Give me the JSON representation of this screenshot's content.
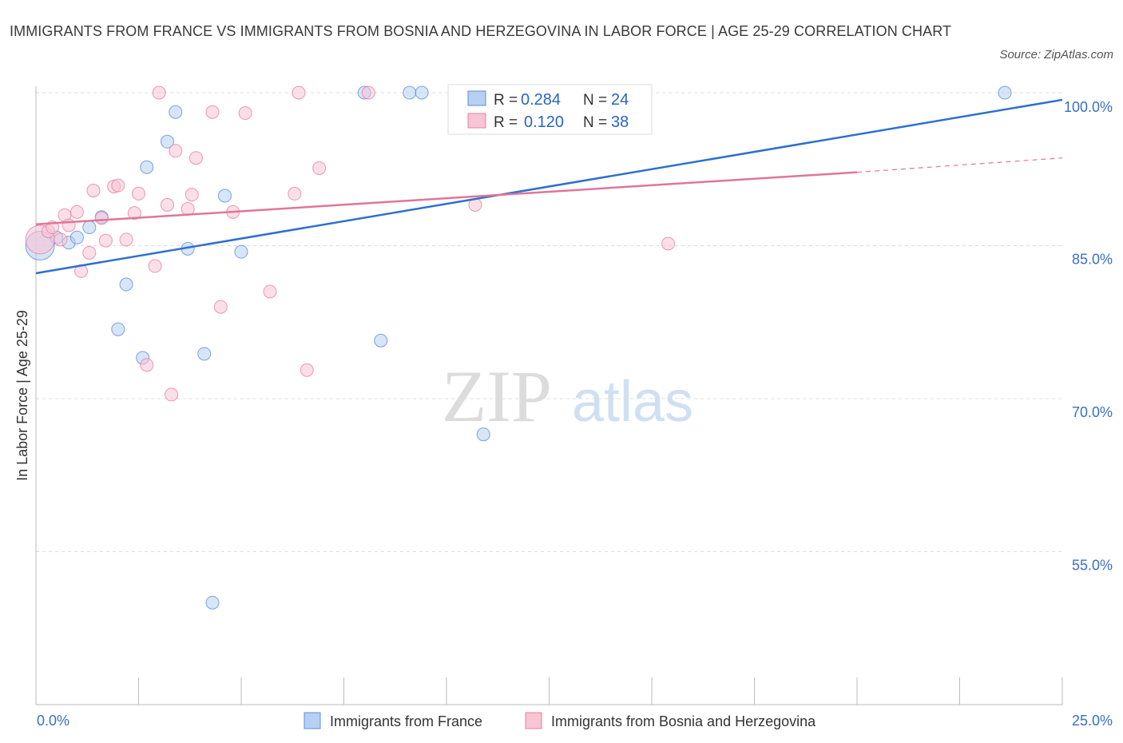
{
  "title": "IMMIGRANTS FROM FRANCE VS IMMIGRANTS FROM BOSNIA AND HERZEGOVINA IN LABOR FORCE | AGE 25-29 CORRELATION CHART",
  "source": "Source: ZipAtlas.com",
  "watermark": {
    "zip": "ZIP",
    "atlas": "atlas"
  },
  "colors": {
    "blue": "#5b8fd8",
    "blue_fill": "#b7d0f2",
    "blue_line": "#2f6fcf",
    "pink": "#e87fa0",
    "pink_fill": "#f7c5d5",
    "pink_line": "#e0759a",
    "axis_label": "#3a6fc4",
    "grid": "#dddddd"
  },
  "legend": {
    "r_label": "R =",
    "n_label": "N =",
    "blue": {
      "r": "0.284",
      "n": "24"
    },
    "pink": {
      "r": "0.120",
      "n": "38"
    }
  },
  "chart_data": {
    "type": "scatter",
    "title": "IMMIGRANTS FROM FRANCE VS IMMIGRANTS FROM BOSNIA AND HERZEGOVINA IN LABOR FORCE | AGE 25-29 CORRELATION CHART",
    "xlabel": "",
    "ylabel": "In Labor Force | Age 25-29",
    "xlim": [
      0,
      25
    ],
    "ylim": [
      40,
      100
    ],
    "x_tick_labels": [
      "0.0%",
      "25.0%"
    ],
    "y_ticks": [
      55,
      70,
      85,
      100
    ],
    "y_tick_labels": [
      "55.0%",
      "70.0%",
      "85.0%",
      "100.0%"
    ],
    "grid": true,
    "series": [
      {
        "name": "Immigrants from France",
        "color": "#5b8fd8",
        "points": [
          [
            0.1,
            85.0
          ],
          [
            0.5,
            85.8
          ],
          [
            0.8,
            85.3
          ],
          [
            1.0,
            85.8
          ],
          [
            1.3,
            86.8
          ],
          [
            1.6,
            87.8
          ],
          [
            2.2,
            81.2
          ],
          [
            2.0,
            76.8
          ],
          [
            2.6,
            74.0
          ],
          [
            2.7,
            92.7
          ],
          [
            3.2,
            95.2
          ],
          [
            3.4,
            98.1
          ],
          [
            3.7,
            84.7
          ],
          [
            4.1,
            74.4
          ],
          [
            4.3,
            50.0
          ],
          [
            4.6,
            89.9
          ],
          [
            5.0,
            84.4
          ],
          [
            8.0,
            100.0
          ],
          [
            8.4,
            75.7
          ],
          [
            9.1,
            100.0
          ],
          [
            9.4,
            100.0
          ],
          [
            10.6,
            100.0
          ],
          [
            10.9,
            66.5
          ],
          [
            23.6,
            100.0
          ]
        ],
        "trend": {
          "x": [
            0,
            25
          ],
          "y": [
            82.3,
            99.3
          ]
        }
      },
      {
        "name": "Immigrants from Bosnia and Herzegovina",
        "color": "#e87fa0",
        "points": [
          [
            0.1,
            85.6
          ],
          [
            0.3,
            86.4
          ],
          [
            0.6,
            85.6
          ],
          [
            0.4,
            86.8
          ],
          [
            0.7,
            88.0
          ],
          [
            0.8,
            87.0
          ],
          [
            1.0,
            88.3
          ],
          [
            1.1,
            82.5
          ],
          [
            1.3,
            84.3
          ],
          [
            1.4,
            90.4
          ],
          [
            1.6,
            87.7
          ],
          [
            1.7,
            85.5
          ],
          [
            1.9,
            90.8
          ],
          [
            2.0,
            90.9
          ],
          [
            2.2,
            85.6
          ],
          [
            2.4,
            88.2
          ],
          [
            2.5,
            90.1
          ],
          [
            2.7,
            73.3
          ],
          [
            2.9,
            83.0
          ],
          [
            3.0,
            100.0
          ],
          [
            3.2,
            89.0
          ],
          [
            3.3,
            70.4
          ],
          [
            3.4,
            94.3
          ],
          [
            3.7,
            88.6
          ],
          [
            3.8,
            90.0
          ],
          [
            3.9,
            93.6
          ],
          [
            4.3,
            98.1
          ],
          [
            4.5,
            79.0
          ],
          [
            4.8,
            88.3
          ],
          [
            5.1,
            98.0
          ],
          [
            5.7,
            80.5
          ],
          [
            6.3,
            90.1
          ],
          [
            6.4,
            100.0
          ],
          [
            6.6,
            72.8
          ],
          [
            6.9,
            92.6
          ],
          [
            8.1,
            100.0
          ],
          [
            10.7,
            89.0
          ],
          [
            15.4,
            85.2
          ]
        ],
        "trend": {
          "x": [
            0,
            20
          ],
          "y": [
            87.1,
            92.2
          ]
        },
        "trend_dashed": {
          "x": [
            20,
            25
          ],
          "y": [
            92.2,
            93.6
          ]
        }
      }
    ]
  },
  "bottom_legend": [
    {
      "label": "Immigrants from France"
    },
    {
      "label": "Immigrants from Bosnia and Herzegovina"
    }
  ]
}
